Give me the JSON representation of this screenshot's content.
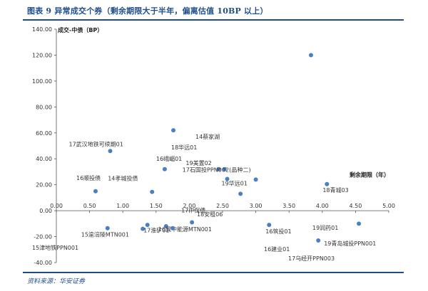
{
  "figure": {
    "title": "图表 9  异常成交个券（剩余期限大于半年，偏离估值 10BP 以上）",
    "source": "资料来源：华安证券"
  },
  "chart_data": {
    "type": "scatter",
    "title": "",
    "ylabel": "成交-中债（BP）",
    "xlabel": "剩余期限（年）",
    "xlim": [
      0,
      5
    ],
    "ylim": [
      -40,
      140
    ],
    "xticks": [
      "0.00",
      "0.50",
      "1.00",
      "1.50",
      "2.00",
      "2.50",
      "3.00",
      "3.50",
      "4.00",
      "4.50",
      "5.00"
    ],
    "yticks": [
      "140.00",
      "120.00",
      "100.00",
      "80.00",
      "60.00",
      "40.00",
      "20.00",
      "0.00",
      "-20.00",
      "-40.00"
    ],
    "grid": false,
    "marker_color": "#4a7fc1",
    "points": [
      {
        "x": 3.83,
        "y": 120.0,
        "label": ""
      },
      {
        "x": 1.76,
        "y": 62.0,
        "label": ""
      },
      {
        "x": 0.81,
        "y": 46.0,
        "label": "17武汉地铁可续期01"
      },
      {
        "x": 1.63,
        "y": 32.0,
        "label": "16峨嵋01"
      },
      {
        "x": 2.44,
        "y": 32.0,
        "label": "19美置02"
      },
      {
        "x": 2.53,
        "y": 32.0,
        "label": ""
      },
      {
        "x": 2.57,
        "y": 24.5,
        "label": "19华远01"
      },
      {
        "x": 3.0,
        "y": 24.0,
        "label": "17石国投PPN002(品种二)"
      },
      {
        "x": 4.07,
        "y": 20.5,
        "label": "18青城03"
      },
      {
        "x": 0.59,
        "y": 15.0,
        "label": "16顺投债"
      },
      {
        "x": 1.44,
        "y": 14.5,
        "label": "14孝城投债"
      },
      {
        "x": 2.77,
        "y": 13.0,
        "label": ""
      },
      {
        "x": 2.04,
        "y": -9.0,
        "label": "17中保债"
      },
      {
        "x": 3.2,
        "y": -11.0,
        "label": "16筑投01"
      },
      {
        "x": 4.55,
        "y": -10.0,
        "label": ""
      },
      {
        "x": 1.37,
        "y": -11.0,
        "label": ""
      },
      {
        "x": 1.3,
        "y": -14.0,
        "label": ""
      },
      {
        "x": 1.65,
        "y": -12.0,
        "label": "16冀中能源MTN001"
      },
      {
        "x": 1.75,
        "y": -13.5,
        "label": "17淮矿01"
      },
      {
        "x": 0.77,
        "y": -13.5,
        "label": "15渝涪陵MTN001"
      },
      {
        "x": 3.94,
        "y": -23.0,
        "label": "19青岛城投PPN001"
      }
    ],
    "floating_labels": [
      "14蔡家湖",
      "18华远01",
      "18安租06",
      "15津地铁PPN001",
      "16建业01",
      "17乌经开PPN003",
      "19润药01"
    ]
  }
}
